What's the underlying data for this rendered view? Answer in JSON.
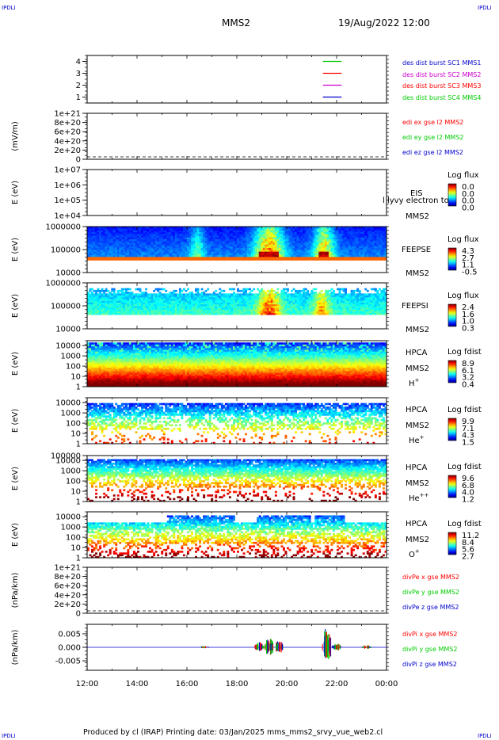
{
  "header": {
    "corner_label": "IPDLI",
    "spacecraft": "MMS2",
    "datetime": "19/Aug/2022 12:00"
  },
  "footer": {
    "text": "Produced by cl (IRAP)   Printing date: 03/Jan/2025   mms_mms2_srvy_vue_web2.cl"
  },
  "colors": {
    "red": "#ff0000",
    "green": "#00cc00",
    "blue": "#0000cc",
    "magenta": "#cc00cc",
    "fpi_orange": "#ff6600"
  },
  "chart_data": [
    {
      "type": "line",
      "id": "sc-availability",
      "ylabel": "",
      "ylim": [
        0.5,
        4.5
      ],
      "yticks": [
        "1",
        "2",
        "3",
        "4"
      ],
      "yvals": [
        1,
        2,
        3,
        4
      ],
      "legend": [
        {
          "label": "des dist burst SC1 MMS1",
          "color": "#0000cc"
        },
        {
          "label": "des dist burst SC2 MMS2",
          "color": "#cc00cc"
        },
        {
          "label": "des dist burst SC3 MMS3",
          "color": "#ff0000"
        },
        {
          "label": "des dist burst SC4 MMS4",
          "color": "#00cc00"
        }
      ],
      "series": [
        {
          "y": 4,
          "x": [
            21.45,
            22.2
          ],
          "color": "#00cc00"
        },
        {
          "y": 3,
          "x": [
            21.45,
            22.2
          ],
          "color": "#ff0000"
        },
        {
          "y": 2,
          "x": [
            21.45,
            22.2
          ],
          "color": "#cc00cc"
        },
        {
          "y": 1,
          "x": [
            21.45,
            22.2
          ],
          "color": "#0000cc"
        }
      ]
    },
    {
      "type": "line",
      "id": "edi-e",
      "ylabel": "(mV/m)",
      "ylim": [
        0,
        1e+21
      ],
      "yticks": [
        "1e+21",
        "8e+20",
        "6e+20",
        "4e+20",
        "2e+20",
        "0"
      ],
      "yvals": [
        1e+21,
        8e+20,
        6e+20,
        4e+20,
        2e+20,
        0
      ],
      "zero_line": true,
      "legend": [
        {
          "label": "edi ex gse l2 MMS2",
          "color": "#ff0000"
        },
        {
          "label": "edi ey gse l2 MMS2",
          "color": "#00cc00"
        },
        {
          "label": "edi ez gse l2 MMS2",
          "color": "#0000cc"
        }
      ]
    },
    {
      "type": "heatmap",
      "id": "eis",
      "ylabel": "E (eV)",
      "log": true,
      "ylim": [
        10000.0,
        10000000.0
      ],
      "yticks": [
        "1e+07",
        "1e+06",
        "1e+05",
        "1e+04"
      ],
      "yvals": [
        10000000.0,
        1000000.0,
        100000.0,
        10000.0
      ],
      "instrument": [
        "EIS",
        "MMS2"
      ],
      "overlay_text": "l lyvy electron to",
      "colorbar": {
        "title": "Log flux",
        "ticks": [
          "0.0",
          "0.0",
          "0.0",
          "0.0"
        ]
      },
      "fill": "none"
    },
    {
      "type": "heatmap",
      "id": "feeps-e",
      "ylabel": "E (eV)",
      "log": true,
      "ylim": [
        10000.0,
        1000000.0
      ],
      "yticks": [
        "1000000",
        "100000",
        "10000"
      ],
      "yvals": [
        1000000.0,
        100000.0,
        10000.0
      ],
      "instrument": [
        "FEEPSE",
        "MMS2"
      ],
      "colorbar": {
        "title": "Log flux",
        "ticks": [
          "4.3",
          "2.7",
          "1.1",
          "-0.5"
        ]
      },
      "fill": "feeps_e"
    },
    {
      "type": "heatmap",
      "id": "feeps-i",
      "ylabel": "E (eV)",
      "log": true,
      "ylim": [
        10000.0,
        1000000.0
      ],
      "yticks": [
        "1000000",
        "100000",
        "10000"
      ],
      "yvals": [
        1000000.0,
        100000.0,
        10000.0
      ],
      "instrument": [
        "FEEPSI",
        "MMS2"
      ],
      "colorbar": {
        "title": "Log flux",
        "ticks": [
          "2.4",
          "1.6",
          "1.0",
          "0.3"
        ]
      },
      "fill": "feeps_i"
    },
    {
      "type": "heatmap",
      "id": "hpca-h",
      "ylabel": "E (eV)",
      "log": true,
      "ylim": [
        1,
        30000.0
      ],
      "yticks": [
        "10000",
        "1000",
        "100",
        "10",
        "1"
      ],
      "yvals": [
        10000.0,
        1000.0,
        100.0,
        10,
        1
      ],
      "instrument": [
        "HPCA",
        "MMS2"
      ],
      "species": "H",
      "charge": "+",
      "colorbar": {
        "title": "Log fdist",
        "ticks": [
          "8.9",
          "6.1",
          "3.2",
          "0.4"
        ]
      },
      "fill": "hpca_h"
    },
    {
      "type": "heatmap",
      "id": "hpca-he1",
      "ylabel": "E (eV)",
      "log": true,
      "ylim": [
        1,
        30000.0
      ],
      "yticks": [
        "10000",
        "1000",
        "100",
        "10",
        "1"
      ],
      "yvals": [
        10000.0,
        1000.0,
        100.0,
        10,
        1
      ],
      "instrument": [
        "HPCA",
        "MMS2"
      ],
      "species": "He",
      "charge": "+",
      "colorbar": {
        "title": "Log fdist",
        "ticks": [
          "9.9",
          "7.1",
          "4.3",
          "1.5"
        ]
      },
      "fill": "hpca_he1"
    },
    {
      "type": "heatmap",
      "id": "hpca-he2",
      "ylabel": "E (eV)",
      "log": true,
      "ylim": [
        1,
        30000.0
      ],
      "yticks": [
        "100000",
        "10000",
        "1000",
        "100",
        "10",
        "1"
      ],
      "yvals": [
        100000.0,
        10000.0,
        1000.0,
        100.0,
        10,
        1
      ],
      "instrument": [
        "HPCA",
        "MMS2"
      ],
      "species": "He",
      "charge": "++",
      "colorbar": {
        "title": "Log fdist",
        "ticks": [
          "9.6",
          "6.8",
          "4.0",
          "1.2"
        ]
      },
      "fill": "hpca_he2"
    },
    {
      "type": "heatmap",
      "id": "hpca-o",
      "ylabel": "E (eV)",
      "log": true,
      "ylim": [
        1,
        30000.0
      ],
      "yticks": [
        "10000",
        "1000",
        "100",
        "10",
        "1"
      ],
      "yvals": [
        10000.0,
        1000.0,
        100.0,
        10,
        1
      ],
      "instrument": [
        "HPCA",
        "MMS2"
      ],
      "species": "O",
      "charge": "+",
      "colorbar": {
        "title": "Log fdist",
        "ticks": [
          "11.2",
          "8.4",
          "5.6",
          "2.7"
        ]
      },
      "fill": "hpca_o"
    },
    {
      "type": "line",
      "id": "div-pe",
      "ylabel": "(nPa/km)",
      "ylim": [
        0,
        1e+21
      ],
      "yticks": [
        "1e+21",
        "8e+20",
        "6e+20",
        "4e+20",
        "2e+20",
        "0"
      ],
      "yvals": [
        1e+21,
        8e+20,
        6e+20,
        4e+20,
        2e+20,
        0
      ],
      "zero_line": true,
      "legend": [
        {
          "label": "divPe x gse MMS2",
          "color": "#ff0000"
        },
        {
          "label": "divPe y gse MMS2",
          "color": "#00cc00"
        },
        {
          "label": "divPe z gse MMS2",
          "color": "#0000cc"
        }
      ]
    },
    {
      "type": "line",
      "id": "div-pi",
      "ylabel": "(nPa/km)",
      "ylim": [
        -0.0085,
        0.0085
      ],
      "yticks": [
        "0.005",
        "0.000",
        "-0.005"
      ],
      "yvals": [
        0.005,
        0,
        -0.005
      ],
      "legend": [
        {
          "label": "divPi x gse MMS2",
          "color": "#ff0000"
        },
        {
          "label": "divPi y gse MMS2",
          "color": "#00cc00"
        },
        {
          "label": "divPi z gse MMS2",
          "color": "#0000cc"
        }
      ],
      "bursts": [
        {
          "t": 16.7,
          "amp": 0.0005
        },
        {
          "t": 18.9,
          "amp": 0.002
        },
        {
          "t": 19.3,
          "amp": 0.004
        },
        {
          "t": 19.7,
          "amp": 0.0025
        },
        {
          "t": 21.6,
          "amp": 0.0075
        },
        {
          "t": 22.0,
          "amp": 0.0015
        },
        {
          "t": 23.2,
          "amp": 0.0008
        }
      ]
    }
  ],
  "time_axis": {
    "xlim": [
      12,
      24
    ],
    "ticks": [
      "12:00",
      "14:00",
      "16:00",
      "18:00",
      "20:00",
      "22:00",
      "00:00"
    ],
    "tvals": [
      12,
      14,
      16,
      18,
      20,
      22,
      24
    ]
  }
}
